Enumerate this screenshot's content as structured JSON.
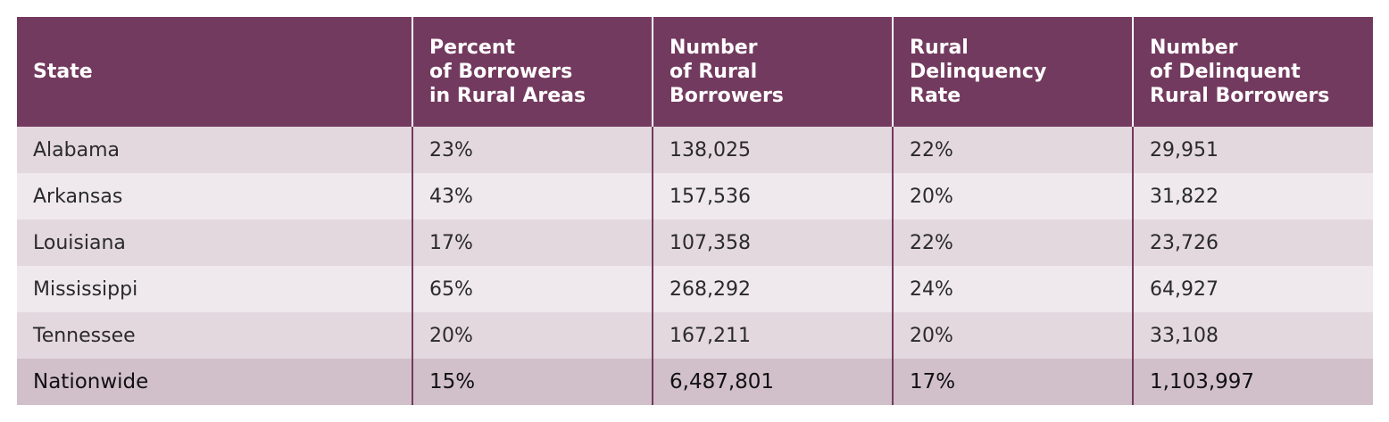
{
  "chart_data": {
    "type": "table",
    "columns": [
      "State",
      "Percent\nof Borrowers\nin Rural Areas",
      "Number\nof Rural\nBorrowers",
      "Rural\nDelinquency\nRate",
      "Number\nof Delinquent\nRural Borrowers"
    ],
    "rows": [
      [
        "Alabama",
        "23%",
        "138,025",
        "22%",
        "29,951"
      ],
      [
        "Arkansas",
        "43%",
        "157,536",
        "20%",
        "31,822"
      ],
      [
        "Louisiana",
        "17%",
        "107,358",
        "22%",
        "23,726"
      ],
      [
        "Mississippi",
        "65%",
        "268,292",
        "24%",
        "64,927"
      ],
      [
        "Tennessee",
        "20%",
        "167,211",
        "20%",
        "33,108"
      ],
      [
        "Nationwide",
        "15%",
        "6,487,801",
        "17%",
        "1,103,997"
      ]
    ]
  },
  "colors": {
    "header_bg": "#733a5f",
    "row_odd_bg": "#e4d8df",
    "row_even_bg": "#efe9ed",
    "total_row_bg": "#d1c0ca"
  }
}
